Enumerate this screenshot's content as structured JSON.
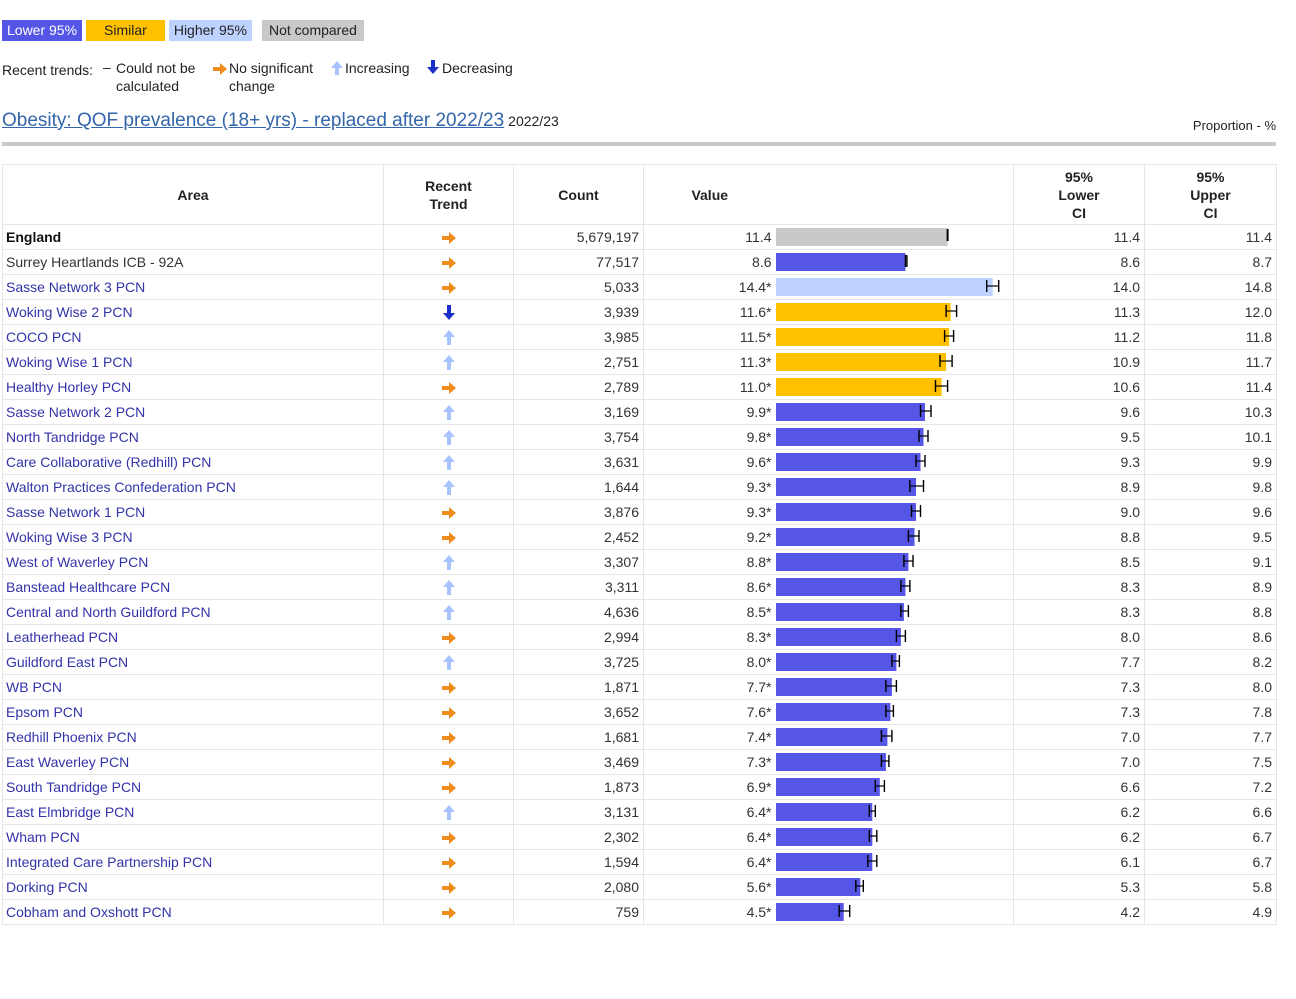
{
  "legend": {
    "lower": "Lower 95%",
    "similar": "Similar",
    "higher": "Higher 95%",
    "not_compared": "Not compared"
  },
  "trends_legend": {
    "label": "Recent trends:",
    "could_not": "Could not be calculated",
    "no_change": "No significant change",
    "increasing": "Increasing",
    "decreasing": "Decreasing"
  },
  "indicator": {
    "title": "Obesity: QOF prevalence (18+ yrs) - replaced after 2022/23",
    "period": "2022/23",
    "unit": "Proportion - %"
  },
  "columns": {
    "area": "Area",
    "recent_trend": "Recent Trend",
    "count": "Count",
    "value": "Value",
    "lower_ci": "95% Lower CI",
    "upper_ci": "95% Upper CI"
  },
  "colors": {
    "lower": "#5555e6",
    "similar": "#ffc000",
    "higher": "#bed2ff",
    "not_compared": "#c9c9c9",
    "no_change_arrow": "#f08c1e",
    "increasing_arrow": "#a8c4ff",
    "decreasing_arrow": "#1a2fc8"
  },
  "chart_data": {
    "type": "bar",
    "xlim": [
      0,
      15
    ],
    "rows": [
      {
        "area": "England",
        "trend": "no_change",
        "count": "5,679,197",
        "value": 11.4,
        "value_label": "11.4",
        "lower": 11.4,
        "upper": 11.4,
        "status": "not_compared"
      },
      {
        "area": "Surrey Heartlands ICB - 92A",
        "trend": "no_change",
        "count": "77,517",
        "value": 8.6,
        "value_label": "8.6",
        "lower": 8.6,
        "upper": 8.7,
        "status": "lower"
      },
      {
        "area": "Sasse Network 3 PCN",
        "trend": "no_change",
        "count": "5,033",
        "value": 14.4,
        "value_label": "14.4*",
        "lower": 14.0,
        "upper": 14.8,
        "status": "higher"
      },
      {
        "area": "Woking Wise 2 PCN",
        "trend": "decreasing",
        "count": "3,939",
        "value": 11.6,
        "value_label": "11.6*",
        "lower": 11.3,
        "upper": 12.0,
        "status": "similar"
      },
      {
        "area": "COCO PCN",
        "trend": "increasing",
        "count": "3,985",
        "value": 11.5,
        "value_label": "11.5*",
        "lower": 11.2,
        "upper": 11.8,
        "status": "similar"
      },
      {
        "area": "Woking Wise 1 PCN",
        "trend": "increasing",
        "count": "2,751",
        "value": 11.3,
        "value_label": "11.3*",
        "lower": 10.9,
        "upper": 11.7,
        "status": "similar"
      },
      {
        "area": "Healthy Horley PCN",
        "trend": "no_change",
        "count": "2,789",
        "value": 11.0,
        "value_label": "11.0*",
        "lower": 10.6,
        "upper": 11.4,
        "status": "similar"
      },
      {
        "area": "Sasse Network 2 PCN",
        "trend": "increasing",
        "count": "3,169",
        "value": 9.9,
        "value_label": "9.9*",
        "lower": 9.6,
        "upper": 10.3,
        "status": "lower"
      },
      {
        "area": "North Tandridge PCN",
        "trend": "increasing",
        "count": "3,754",
        "value": 9.8,
        "value_label": "9.8*",
        "lower": 9.5,
        "upper": 10.1,
        "status": "lower"
      },
      {
        "area": "Care Collaborative (Redhill) PCN",
        "trend": "increasing",
        "count": "3,631",
        "value": 9.6,
        "value_label": "9.6*",
        "lower": 9.3,
        "upper": 9.9,
        "status": "lower"
      },
      {
        "area": "Walton Practices Confederation PCN",
        "trend": "increasing",
        "count": "1,644",
        "value": 9.3,
        "value_label": "9.3*",
        "lower": 8.9,
        "upper": 9.8,
        "status": "lower"
      },
      {
        "area": "Sasse Network 1 PCN",
        "trend": "no_change",
        "count": "3,876",
        "value": 9.3,
        "value_label": "9.3*",
        "lower": 9.0,
        "upper": 9.6,
        "status": "lower"
      },
      {
        "area": "Woking Wise 3 PCN",
        "trend": "no_change",
        "count": "2,452",
        "value": 9.2,
        "value_label": "9.2*",
        "lower": 8.8,
        "upper": 9.5,
        "status": "lower"
      },
      {
        "area": "West of Waverley PCN",
        "trend": "increasing",
        "count": "3,307",
        "value": 8.8,
        "value_label": "8.8*",
        "lower": 8.5,
        "upper": 9.1,
        "status": "lower"
      },
      {
        "area": "Banstead Healthcare PCN",
        "trend": "increasing",
        "count": "3,311",
        "value": 8.6,
        "value_label": "8.6*",
        "lower": 8.3,
        "upper": 8.9,
        "status": "lower"
      },
      {
        "area": "Central and North Guildford PCN",
        "trend": "increasing",
        "count": "4,636",
        "value": 8.5,
        "value_label": "8.5*",
        "lower": 8.3,
        "upper": 8.8,
        "status": "lower"
      },
      {
        "area": "Leatherhead PCN",
        "trend": "no_change",
        "count": "2,994",
        "value": 8.3,
        "value_label": "8.3*",
        "lower": 8.0,
        "upper": 8.6,
        "status": "lower"
      },
      {
        "area": "Guildford East PCN",
        "trend": "increasing",
        "count": "3,725",
        "value": 8.0,
        "value_label": "8.0*",
        "lower": 7.7,
        "upper": 8.2,
        "status": "lower"
      },
      {
        "area": "WB PCN",
        "trend": "no_change",
        "count": "1,871",
        "value": 7.7,
        "value_label": "7.7*",
        "lower": 7.3,
        "upper": 8.0,
        "status": "lower"
      },
      {
        "area": "Epsom PCN",
        "trend": "no_change",
        "count": "3,652",
        "value": 7.6,
        "value_label": "7.6*",
        "lower": 7.3,
        "upper": 7.8,
        "status": "lower"
      },
      {
        "area": "Redhill Phoenix PCN",
        "trend": "no_change",
        "count": "1,681",
        "value": 7.4,
        "value_label": "7.4*",
        "lower": 7.0,
        "upper": 7.7,
        "status": "lower"
      },
      {
        "area": "East Waverley PCN",
        "trend": "no_change",
        "count": "3,469",
        "value": 7.3,
        "value_label": "7.3*",
        "lower": 7.0,
        "upper": 7.5,
        "status": "lower"
      },
      {
        "area": "South Tandridge PCN",
        "trend": "no_change",
        "count": "1,873",
        "value": 6.9,
        "value_label": "6.9*",
        "lower": 6.6,
        "upper": 7.2,
        "status": "lower"
      },
      {
        "area": "East Elmbridge PCN",
        "trend": "increasing",
        "count": "3,131",
        "value": 6.4,
        "value_label": "6.4*",
        "lower": 6.2,
        "upper": 6.6,
        "status": "lower"
      },
      {
        "area": "Wham PCN",
        "trend": "no_change",
        "count": "2,302",
        "value": 6.4,
        "value_label": "6.4*",
        "lower": 6.2,
        "upper": 6.7,
        "status": "lower"
      },
      {
        "area": "Integrated Care Partnership PCN",
        "trend": "no_change",
        "count": "1,594",
        "value": 6.4,
        "value_label": "6.4*",
        "lower": 6.1,
        "upper": 6.7,
        "status": "lower"
      },
      {
        "area": "Dorking PCN",
        "trend": "no_change",
        "count": "2,080",
        "value": 5.6,
        "value_label": "5.6*",
        "lower": 5.3,
        "upper": 5.8,
        "status": "lower"
      },
      {
        "area": "Cobham and Oxshott PCN",
        "trend": "no_change",
        "count": "759",
        "value": 4.5,
        "value_label": "4.5*",
        "lower": 4.2,
        "upper": 4.9,
        "status": "lower"
      }
    ]
  }
}
